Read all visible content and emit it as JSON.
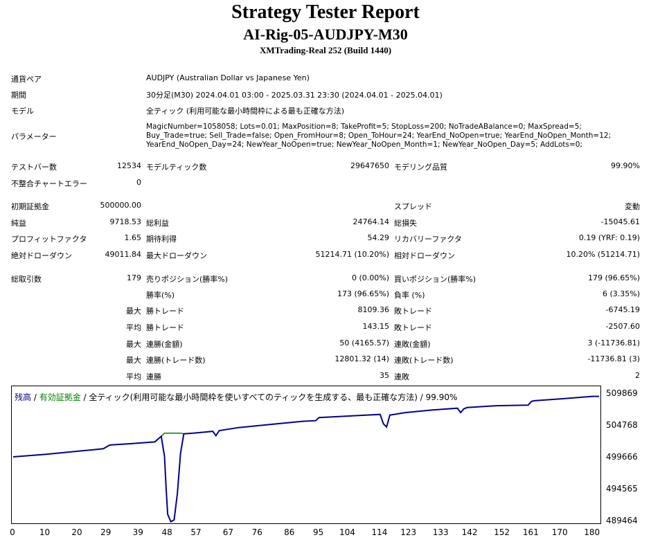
{
  "header": {
    "title": "Strategy Tester Report",
    "subtitle": "AI-Rig-05-AUDJPY-M30",
    "server": "XMTrading-Real 252 (Build 1440)"
  },
  "info": {
    "symbol_label": "通貨ペア",
    "symbol_value": "AUDJPY (Australian Dollar vs Japanese Yen)",
    "period_label": "期間",
    "period_value": "30分足(M30) 2024.04.01 03:00 - 2025.03.31 23:30 (2024.04.01 - 2025.04.01)",
    "model_label": "モデル",
    "model_value": "全ティック (利用可能な最小時間枠による最も正確な方法)",
    "params_label": "パラメーター",
    "params_lines": [
      "MagicNumber=1058058; Lots=0.01; MaxPosition=8; TakeProfit=5; StopLoss=200; NoTradeABalance=0; MaxSpread=5;",
      "Buy_Trade=true; Sell_Trade=false; Open_FromHour=8; Open_ToHour=24; YearEnd_NoOpen=true; YearEnd_NoOpen_Month=12;",
      "YearEnd_NoOpen_Day=24; NewYear_NoOpen=true; NewYear_NoOpen_Month=1; NewYear_NoOpen_Day=5; AddLots=0;"
    ]
  },
  "stats": {
    "bars_label": "テストバー数",
    "bars": "12534",
    "ticks_label": "モデルティック数",
    "ticks": "29647650",
    "quality_label": "モデリング品質",
    "quality": "99.90%",
    "mismatch_label": "不整合チャートエラー",
    "mismatch": "0",
    "deposit_label": "初期証拠金",
    "deposit": "500000.00",
    "spread_label": "スプレッド",
    "spread": "変動",
    "net_label": "純益",
    "net": "9718.53",
    "gross_profit_label": "総利益",
    "gross_profit": "24764.14",
    "gross_loss_label": "総損失",
    "gross_loss": "-15045.61",
    "pf_label": "プロフィットファクタ",
    "pf": "1.65",
    "payoff_label": "期待利得",
    "payoff": "54.29",
    "recovery_label": "リカバリーファクタ",
    "recovery": "0.19 (YRF: 0.19)",
    "abs_dd_label": "絶対ドローダウン",
    "abs_dd": "49011.84",
    "max_dd_label": "最大ドローダウン",
    "max_dd": "51214.71 (10.20%)",
    "rel_dd_label": "相対ドローダウン",
    "rel_dd": "10.20% (51214.71)",
    "trades_label": "総取引数",
    "trades": "179",
    "short_label": "売りポジション(勝率%)",
    "short": "0 (0.00%)",
    "long_label": "買いポジション(勝率%)",
    "long": "179 (96.65%)",
    "win_rate_label": "勝率(%)",
    "win_rate": "173 (96.65%)",
    "loss_rate_label": "負率 (%)",
    "loss_rate": "6 (3.35%)",
    "max_label": "最大",
    "avg_label": "平均",
    "win_trade_label": "勝トレード",
    "loss_trade_label": "敗トレード",
    "largest_win": "8109.36",
    "largest_loss": "-6745.19",
    "average_win": "143.15",
    "average_loss": "-2507.60",
    "consec_win_money_label": "連勝(金額)",
    "consec_win_money": "50 (4165.57)",
    "consec_loss_money_label": "連敗(金額)",
    "consec_loss_money": "3 (-11736.81)",
    "consec_win_trades_label": "連勝(トレード数)",
    "consec_win_trades": "12801.32 (14)",
    "consec_loss_trades_label": "連敗(トレード数)",
    "consec_loss_trades": "-11736.81 (3)",
    "avg_consec_win_label": "連勝",
    "avg_consec_win": "35",
    "avg_consec_loss_label": "連敗",
    "avg_consec_loss": "2"
  },
  "chart_legend": {
    "balance": "残高",
    "sep1": " / ",
    "equity": "有効証拠金",
    "rest": " / 全ティック(利用可能な最小時間枠を使いすべてのティックを生成する、最も正確な方法) / 99.90%"
  },
  "colors": {
    "balance": "#00008b",
    "equity": "#008000"
  },
  "chart_data": {
    "type": "line",
    "x_ticks": [
      "0",
      "10",
      "20",
      "29",
      "39",
      "48",
      "57",
      "67",
      "76",
      "86",
      "95",
      "104",
      "114",
      "123",
      "133",
      "142",
      "152",
      "161",
      "170",
      "180"
    ],
    "y_ticks": [
      "509869",
      "504768",
      "499666",
      "494565",
      "489464"
    ],
    "ylim": [
      489464,
      511000
    ],
    "xlim": [
      0,
      182
    ],
    "series": [
      {
        "name": "残高",
        "x": [
          0,
          10,
          20,
          28,
          30,
          36,
          44,
          46,
          47,
          47.5,
          48,
          49,
          50,
          51,
          52,
          53,
          56,
          60,
          62,
          63,
          64,
          70,
          80,
          90,
          94,
          95,
          110,
          114,
          115,
          116,
          117,
          122,
          130,
          138,
          139,
          140,
          141,
          150,
          160,
          161,
          162,
          170,
          180,
          182
        ],
        "y": [
          499900,
          500300,
          500800,
          501200,
          501800,
          502000,
          502300,
          503200,
          500000,
          495000,
          490700,
          489500,
          489800,
          494000,
          500500,
          503600,
          503700,
          503900,
          504000,
          503300,
          504100,
          504600,
          505100,
          505600,
          505700,
          506200,
          506600,
          506700,
          505200,
          504700,
          506600,
          507000,
          507400,
          507700,
          507000,
          507600,
          507800,
          508100,
          508200,
          508800,
          508900,
          509200,
          509600,
          509600
        ]
      },
      {
        "name": "有効証拠金",
        "x": [
          44,
          46,
          47,
          48,
          49,
          50,
          51,
          52,
          53
        ],
        "y": [
          502300,
          503200,
          503700,
          503700,
          503700,
          503700,
          503700,
          503700,
          503600
        ]
      }
    ]
  }
}
